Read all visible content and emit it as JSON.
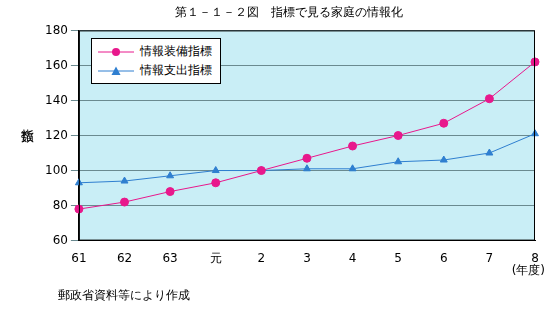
{
  "chart_data": {
    "type": "line",
    "title": "第１－１－２図　指標で見る家庭の情報化",
    "y_label": "指数",
    "x_label": "(年度)",
    "annotations": [
      "郵政省資料等により作成"
    ],
    "categories": [
      "61",
      "62",
      "63",
      "元",
      "2",
      "3",
      "4",
      "5",
      "6",
      "7",
      "8"
    ],
    "series": [
      {
        "name": "情報装備指標",
        "color": "#e8188c",
        "marker": "circle",
        "values": [
          78,
          82,
          88,
          93,
          100,
          107,
          114,
          120,
          127,
          141,
          162
        ]
      },
      {
        "name": "情報支出指標",
        "color": "#2f7fd0",
        "marker": "triangle",
        "values": [
          93,
          94,
          97,
          100,
          100,
          101,
          101,
          105,
          106,
          110,
          121
        ]
      }
    ],
    "ylim": [
      60,
      180
    ],
    "yticks": [
      60,
      80,
      100,
      120,
      140,
      160,
      180
    ],
    "grid": true,
    "legend": "upper left"
  }
}
